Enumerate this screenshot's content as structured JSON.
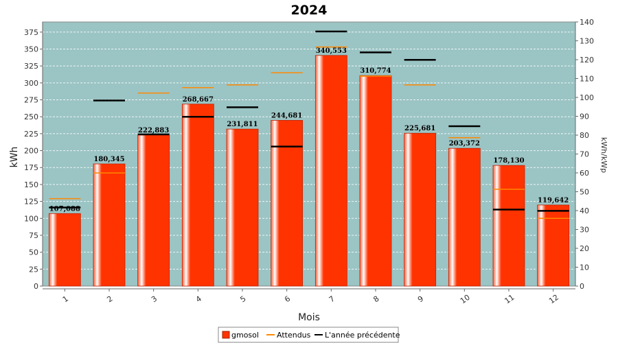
{
  "chart_data": {
    "type": "bar",
    "title": "2024",
    "xlabel": "Mois",
    "ylabel": "kWh",
    "y2label": "kWh/kWp",
    "categories": [
      "1",
      "2",
      "3",
      "4",
      "5",
      "6",
      "7",
      "8",
      "9",
      "10",
      "11",
      "12"
    ],
    "ylim": [
      0,
      390
    ],
    "y2lim": [
      0,
      140
    ],
    "yticks": [
      0,
      25,
      50,
      75,
      100,
      125,
      150,
      175,
      200,
      225,
      250,
      275,
      300,
      325,
      350,
      375
    ],
    "y2ticks": [
      0,
      10,
      20,
      30,
      40,
      50,
      60,
      70,
      80,
      90,
      100,
      110,
      120,
      130,
      140
    ],
    "grid": true,
    "legend_position": "bottom",
    "series": [
      {
        "name": "gmosol",
        "type": "bar",
        "color": "#ff3300",
        "values": [
          107.088,
          180.345,
          222.883,
          268.667,
          231.811,
          244.681,
          340.553,
          310.774,
          225.681,
          203.372,
          178.13,
          119.642
        ],
        "labels": [
          "107,088",
          "180,345",
          "222,883",
          "268,667",
          "231,811",
          "244,681",
          "340,553",
          "310,774",
          "225,681",
          "203,372",
          "178,130",
          "119,642"
        ]
      },
      {
        "name": "Attendus",
        "type": "marker",
        "color": "#ff8800",
        "values": [
          129,
          167,
          285,
          293,
          297,
          315,
          353,
          310,
          297,
          219,
          143,
          100
        ]
      },
      {
        "name": "L'année précédente",
        "type": "marker",
        "color": "#000000",
        "values": [
          116,
          274,
          224,
          250,
          264,
          206,
          376,
          345,
          334,
          236,
          113,
          111
        ]
      }
    ]
  }
}
